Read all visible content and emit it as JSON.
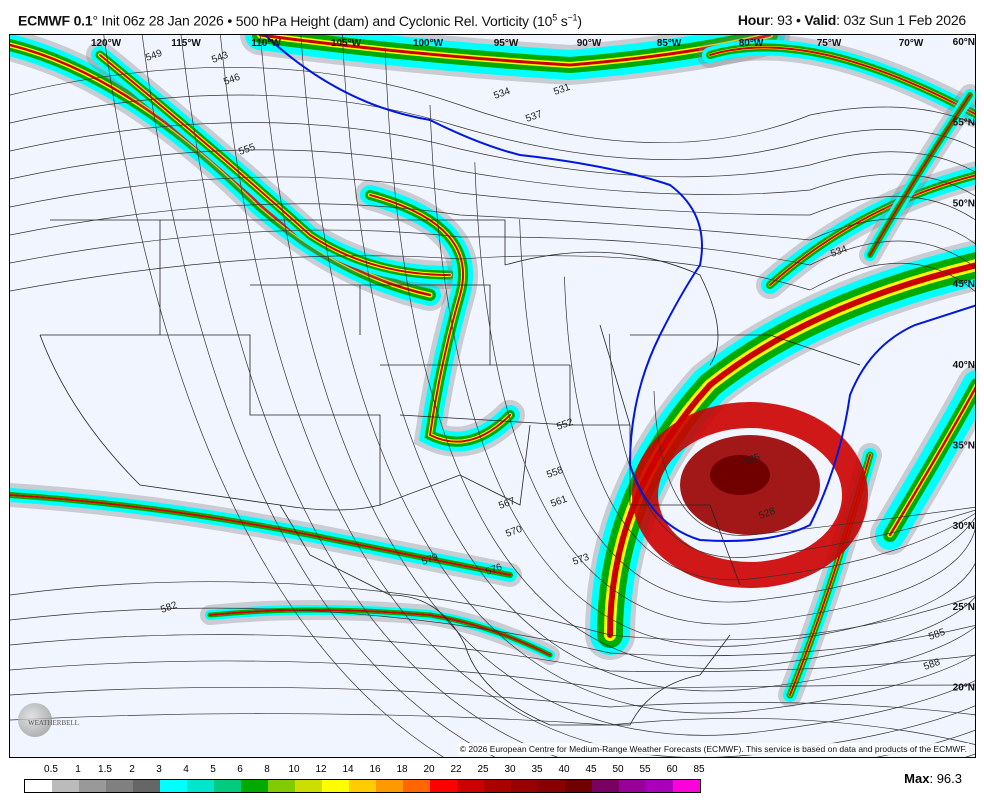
{
  "header": {
    "model": "ECMWF 0.1",
    "model_suffix": "°",
    "init": "Init 06z 28 Jan 2026",
    "sep": "•",
    "product": "500 hPa Height (dam) and Cyclonic Rel. Vorticity (10",
    "unit_exp": "5",
    "unit_rest": " s",
    "unit_exp2": "−1",
    "unit_close": ")",
    "hour_label": "Hour",
    "hour": "93",
    "valid_label": "Valid",
    "valid": "03z Sun 1 Feb 2026"
  },
  "map": {
    "lon_labels": [
      "120°W",
      "115°W",
      "110°W",
      "105°W",
      "100°W",
      "95°W",
      "90°W",
      "85°W",
      "80°W",
      "75°W",
      "70°W"
    ],
    "lat_labels": [
      "60°N",
      "55°N",
      "50°N",
      "45°N",
      "40°N",
      "35°N",
      "30°N",
      "25°N",
      "20°N"
    ],
    "contour_labels": [
      "549",
      "546",
      "543",
      "555",
      "534",
      "531",
      "537",
      "534",
      "552",
      "558",
      "561",
      "567",
      "570",
      "573",
      "576",
      "579",
      "582",
      "585",
      "588",
      "528",
      "525"
    ],
    "copyright": "© 2026 European Centre for Medium-Range Weather Forecasts (ECMWF). This service is based on data and products of the ECMWF.",
    "logo_text": "WEATHERBELL"
  },
  "colorbar": {
    "labels": [
      "0.5",
      "1",
      "1.5",
      "2",
      "3",
      "4",
      "5",
      "6",
      "8",
      "10",
      "12",
      "14",
      "16",
      "18",
      "20",
      "22",
      "25",
      "30",
      "35",
      "40",
      "45",
      "50",
      "55",
      "60",
      "85"
    ],
    "colors": [
      "#ffffff",
      "#bbbbbb",
      "#999999",
      "#808080",
      "#666666",
      "#00ffff",
      "#00e6cc",
      "#00cc80",
      "#00aa00",
      "#80cc00",
      "#ccdd00",
      "#ffff00",
      "#ffcc00",
      "#ff9900",
      "#ff6600",
      "#ff0000",
      "#cc0000",
      "#aa0000",
      "#990000",
      "#880000",
      "#700000",
      "#770060",
      "#990099",
      "#aa00bb",
      "#ff00dd",
      "#ffccee"
    ]
  },
  "max": {
    "label": "Max",
    "value": "96.3"
  }
}
